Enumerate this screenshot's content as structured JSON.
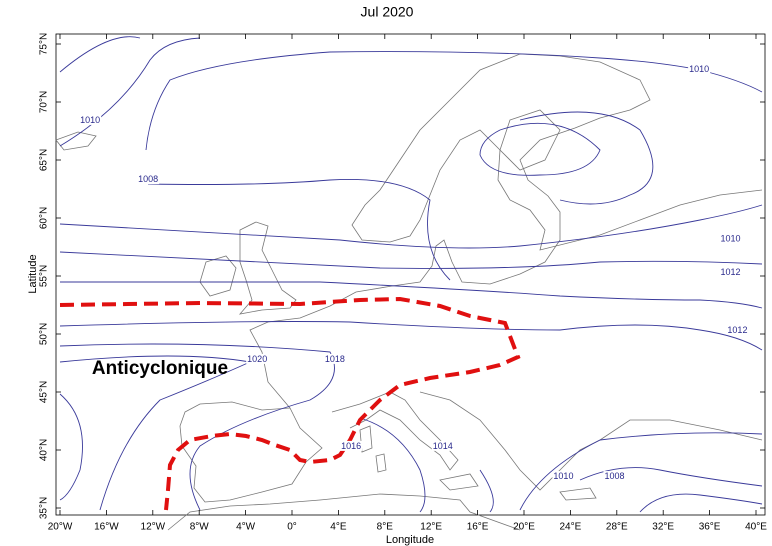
{
  "map": {
    "title": "Jul 2020",
    "x_label": "Longitude",
    "y_label": "Latitude",
    "xlim": [
      -20,
      40
    ],
    "ylim": [
      35,
      75
    ],
    "xticks": [
      {
        "value": -20,
        "label": "20°W"
      },
      {
        "value": -16,
        "label": "16°W"
      },
      {
        "value": -12,
        "label": "12°W"
      },
      {
        "value": -8,
        "label": "8°W"
      },
      {
        "value": -4,
        "label": "4°W"
      },
      {
        "value": 0,
        "label": "0°"
      },
      {
        "value": 4,
        "label": "4°E"
      },
      {
        "value": 8,
        "label": "8°E"
      },
      {
        "value": 12,
        "label": "12°E"
      },
      {
        "value": 16,
        "label": "16°E"
      },
      {
        "value": 20,
        "label": "20°E"
      },
      {
        "value": 24,
        "label": "24°E"
      },
      {
        "value": 28,
        "label": "28°E"
      },
      {
        "value": 32,
        "label": "32°E"
      },
      {
        "value": 36,
        "label": "36°E"
      },
      {
        "value": 40,
        "label": "40°E"
      }
    ],
    "yticks": [
      {
        "value": 35,
        "label": "35°N"
      },
      {
        "value": 40,
        "label": "40°N"
      },
      {
        "value": 45,
        "label": "45°N"
      },
      {
        "value": 50,
        "label": "50°N"
      },
      {
        "value": 55,
        "label": "55°N"
      },
      {
        "value": 60,
        "label": "60°N"
      },
      {
        "value": 65,
        "label": "65°N"
      },
      {
        "value": 70,
        "label": "70°N"
      },
      {
        "value": 75,
        "label": "75°N"
      }
    ],
    "contour_labels": [
      {
        "value": 1010,
        "lon": 35.1,
        "lat": 72.8
      },
      {
        "value": 1010,
        "lon": -17.4,
        "lat": 68.4
      },
      {
        "value": 1008,
        "lon": -12.4,
        "lat": 63.3
      },
      {
        "value": 1010,
        "lon": 37.8,
        "lat": 58.2
      },
      {
        "value": 1012,
        "lon": 37.8,
        "lat": 55.3
      },
      {
        "value": 1012,
        "lon": 38.4,
        "lat": 50.3
      },
      {
        "value": 1020,
        "lon": -3.0,
        "lat": 47.8
      },
      {
        "value": 1018,
        "lon": 3.7,
        "lat": 47.8
      },
      {
        "value": 1016,
        "lon": 5.1,
        "lat": 40.3
      },
      {
        "value": 1014,
        "lon": 13.0,
        "lat": 40.3
      },
      {
        "value": 1010,
        "lon": 23.4,
        "lat": 37.7
      },
      {
        "value": 1008,
        "lon": 27.8,
        "lat": 37.7
      }
    ],
    "annotation": "Anticyclonique"
  }
}
